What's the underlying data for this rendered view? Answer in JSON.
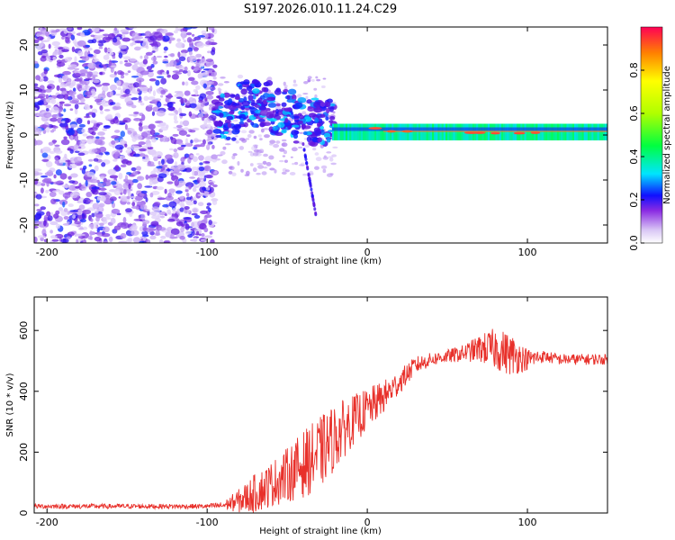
{
  "title": "S197.2026.010.11.24.C29",
  "chart_data": [
    {
      "type": "heatmap",
      "xlabel": "Height of straight line (km)",
      "ylabel": "Frequency (Hz)",
      "xlim": [
        -208,
        150
      ],
      "ylim": [
        -24,
        24
      ],
      "xticks": [
        -200,
        -100,
        0,
        100
      ],
      "yticks": [
        -20,
        -10,
        0,
        10,
        20
      ],
      "colorbar": {
        "label": "Normalized spectral amplitude",
        "range": [
          0,
          1
        ],
        "ticks": [
          0.0,
          0.2,
          0.4,
          0.6,
          0.8
        ],
        "tick_labels": [
          "0.0",
          "0.2",
          "0.4",
          "0.6",
          "0.8"
        ]
      }
    },
    {
      "type": "line",
      "xlabel": "Height of straight line (km)",
      "ylabel": "SNR (10 * v/v)",
      "xlim": [
        -208,
        150
      ],
      "ylim": [
        0,
        710
      ],
      "xticks": [
        -200,
        -100,
        0,
        100
      ],
      "yticks": [
        0,
        200,
        400,
        600
      ],
      "series": [
        {
          "name": "SNR",
          "color": "#e8302a",
          "x": [
            -208,
            -180,
            -150,
            -120,
            -100,
            -90,
            -80,
            -70,
            -60,
            -50,
            -40,
            -30,
            -20,
            -10,
            0,
            10,
            20,
            30,
            40,
            50,
            60,
            70,
            80,
            90,
            100,
            110,
            120,
            130,
            140,
            150
          ],
          "y": [
            22,
            22,
            22,
            22,
            22,
            25,
            40,
            65,
            95,
            125,
            160,
            195,
            250,
            300,
            340,
            380,
            430,
            485,
            505,
            515,
            525,
            540,
            540,
            520,
            505,
            515,
            505,
            505,
            505,
            505
          ],
          "noise_amplitude": [
            8,
            8,
            8,
            8,
            8,
            12,
            40,
            65,
            75,
            90,
            110,
            120,
            110,
            85,
            70,
            55,
            40,
            30,
            22,
            22,
            28,
            45,
            70,
            70,
            35,
            20,
            18,
            18,
            18,
            18
          ]
        }
      ]
    }
  ]
}
